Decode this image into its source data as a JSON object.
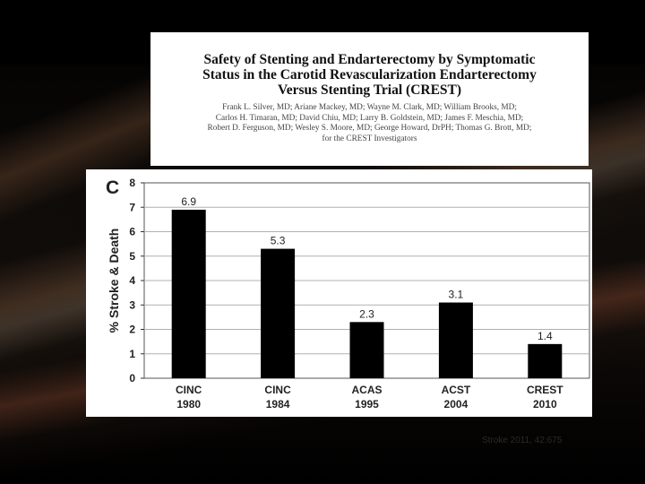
{
  "header": {
    "title_line1": "Safety of Stenting and Endarterectomy by Symptomatic",
    "title_line2": "Status in the Carotid Revascularization Endarterectomy",
    "title_line3": "Versus Stenting Trial (CREST)",
    "authors_line1": "Frank L. Silver, MD; Ariane Mackey, MD; Wayne M. Clark, MD; William Brooks, MD;",
    "authors_line2": "Carlos H. Timaran, MD; David Chiu, MD; Larry B. Goldstein, MD; James F. Meschia, MD;",
    "authors_line3": "Robert D. Ferguson, MD; Wesley S. Moore, MD; George Howard, DrPH; Thomas G. Brott, MD;",
    "authors_line4": "for the CREST Investigators"
  },
  "chart_data": {
    "type": "bar",
    "panel_label": "C",
    "categories": [
      [
        "CINC",
        "1980"
      ],
      [
        "CINC",
        "1984"
      ],
      [
        "ACAS",
        "1995"
      ],
      [
        "ACST",
        "2004"
      ],
      [
        "CREST",
        "2010"
      ]
    ],
    "values": [
      6.9,
      5.3,
      2.3,
      3.1,
      1.4
    ],
    "data_labels": [
      "6.9",
      "5.3",
      "2.3",
      "3.1",
      "1.4"
    ],
    "ylabel": "% Stroke & Death",
    "xlabel": "",
    "ylim": [
      0,
      8
    ],
    "yticks": [
      0,
      1,
      2,
      3,
      4,
      5,
      6,
      7,
      8
    ],
    "grid": true,
    "bar_color": "#000000",
    "grid_color": "#b0b0b0"
  },
  "citation": "Stroke 2011, 42:675"
}
